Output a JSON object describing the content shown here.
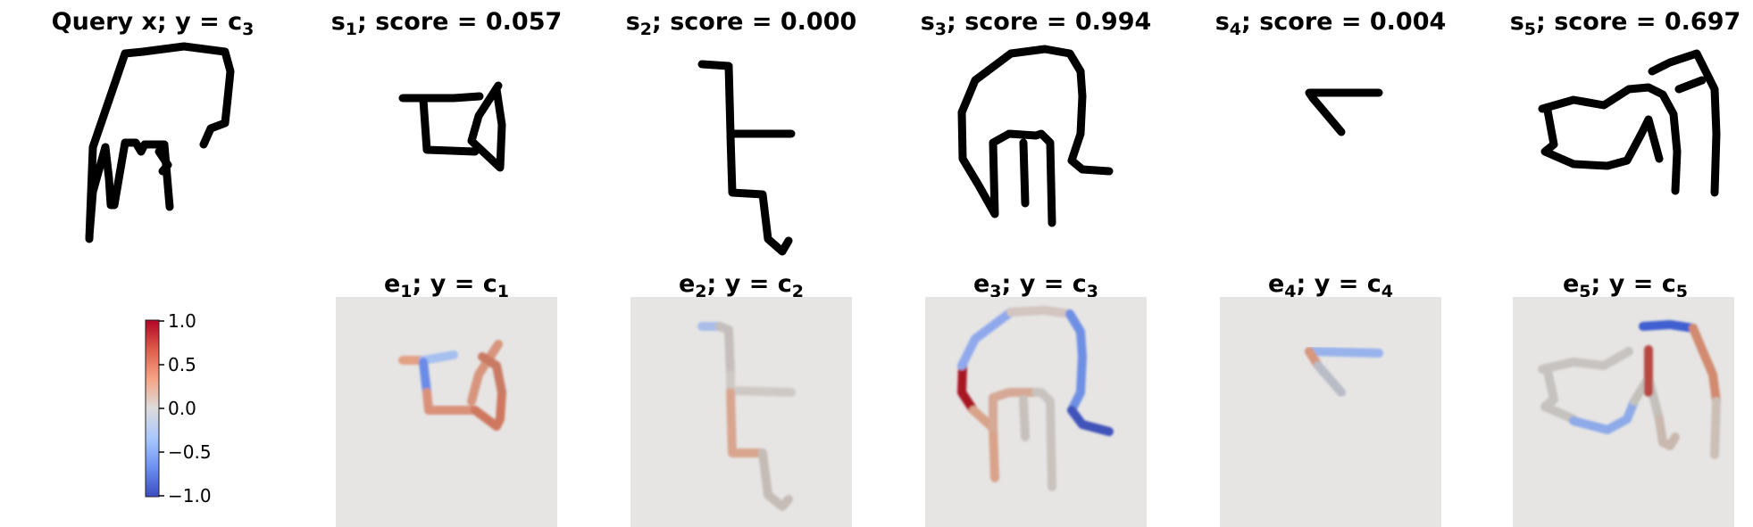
{
  "query": {
    "prefix": "Query x; y = c",
    "sub": "3"
  },
  "supports": [
    {
      "letter": "s",
      "index": "1",
      "score_text": "; score = 0.057",
      "score": 0.057
    },
    {
      "letter": "s",
      "index": "2",
      "score_text": "; score = 0.000",
      "score": 0.0
    },
    {
      "letter": "s",
      "index": "3",
      "score_text": "; score = 0.994",
      "score": 0.994
    },
    {
      "letter": "s",
      "index": "4",
      "score_text": "; score = 0.004",
      "score": 0.004
    },
    {
      "letter": "s",
      "index": "5",
      "score_text": "; score = 0.697",
      "score": 0.697
    }
  ],
  "explanations": [
    {
      "letter": "e",
      "index": "1",
      "label": "; y = c",
      "class_index": "1"
    },
    {
      "letter": "e",
      "index": "2",
      "label": "; y = c",
      "class_index": "2"
    },
    {
      "letter": "e",
      "index": "3",
      "label": "; y = c",
      "class_index": "3"
    },
    {
      "letter": "e",
      "index": "4",
      "label": "; y = c",
      "class_index": "4"
    },
    {
      "letter": "e",
      "index": "5",
      "label": "; y = c",
      "class_index": "5"
    }
  ],
  "colorbar": {
    "ticks": [
      "1.0",
      "0.5",
      "0.0",
      "−0.5",
      "−1.0"
    ],
    "min": -1.0,
    "max": 1.0,
    "colormap": "coolwarm",
    "colors": [
      "#b40426",
      "#dd5f4b",
      "#f6a385",
      "#dddcdc",
      "#aac7fd",
      "#6f92f3",
      "#3b4cc0"
    ]
  },
  "panel_background": "#e6e5e4"
}
